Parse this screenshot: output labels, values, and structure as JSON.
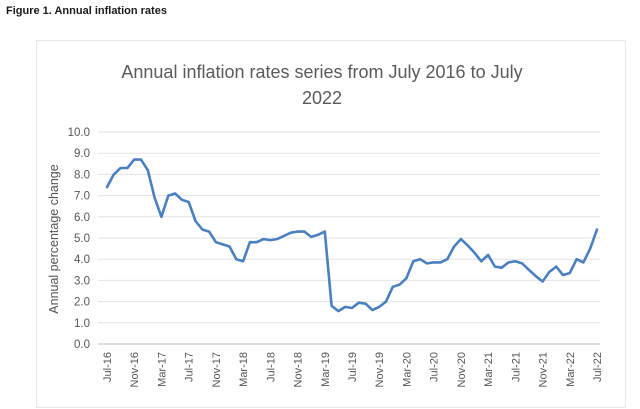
{
  "figure_caption": "Figure 1. Annual inflation rates",
  "chart_data": {
    "type": "line",
    "title": "Annual inflation rates series from July 2016 to July 2022",
    "xlabel": "",
    "ylabel": "Annual percentage change",
    "ylim": [
      0,
      10
    ],
    "yticks": [
      "0.0",
      "1.0",
      "2.0",
      "3.0",
      "4.0",
      "5.0",
      "6.0",
      "7.0",
      "8.0",
      "9.0",
      "10.0"
    ],
    "grid": true,
    "x_tick_labels": [
      "Jul-16",
      "Nov-16",
      "Mar-17",
      "Jul-17",
      "Nov-17",
      "Mar-18",
      "Jul-18",
      "Nov-18",
      "Mar-19",
      "Jul-19",
      "Nov-19",
      "Mar-20",
      "Jul-20",
      "Nov-20",
      "Mar-21",
      "Jul-21",
      "Nov-21",
      "Mar-22",
      "Jul-22"
    ],
    "series": [
      {
        "name": "",
        "color": "#4a7fc0",
        "x": [
          "2016-07",
          "2016-08",
          "2016-09",
          "2016-10",
          "2016-11",
          "2016-12",
          "2017-01",
          "2017-02",
          "2017-03",
          "2017-04",
          "2017-05",
          "2017-06",
          "2017-07",
          "2017-08",
          "2017-09",
          "2017-10",
          "2017-11",
          "2017-12",
          "2018-01",
          "2018-02",
          "2018-03",
          "2018-04",
          "2018-05",
          "2018-06",
          "2018-07",
          "2018-08",
          "2018-09",
          "2018-10",
          "2018-11",
          "2018-12",
          "2019-01",
          "2019-02",
          "2019-03",
          "2019-04",
          "2019-05",
          "2019-06",
          "2019-07",
          "2019-08",
          "2019-09",
          "2019-10",
          "2019-11",
          "2019-12",
          "2020-01",
          "2020-02",
          "2020-03",
          "2020-04",
          "2020-05",
          "2020-06",
          "2020-07",
          "2020-08",
          "2020-09",
          "2020-10",
          "2020-11",
          "2020-12",
          "2021-01",
          "2021-02",
          "2021-03",
          "2021-04",
          "2021-05",
          "2021-06",
          "2021-07",
          "2021-08",
          "2021-09",
          "2021-10",
          "2021-11",
          "2021-12",
          "2022-01",
          "2022-02",
          "2022-03",
          "2022-04",
          "2022-05",
          "2022-06",
          "2022-07"
        ],
        "values": [
          7.4,
          8.0,
          8.3,
          8.3,
          8.7,
          8.7,
          8.2,
          6.9,
          6.0,
          7.0,
          7.1,
          6.8,
          6.7,
          5.8,
          5.4,
          5.3,
          4.8,
          4.7,
          4.6,
          4.0,
          3.9,
          4.8,
          4.8,
          4.95,
          4.9,
          4.95,
          5.1,
          5.25,
          5.3,
          5.3,
          5.05,
          5.15,
          5.3,
          1.8,
          1.55,
          1.75,
          1.7,
          1.95,
          1.9,
          1.6,
          1.75,
          2.0,
          2.7,
          2.8,
          3.1,
          3.9,
          4.0,
          3.8,
          3.85,
          3.85,
          4.0,
          4.6,
          4.95,
          4.65,
          4.3,
          3.9,
          4.2,
          3.65,
          3.6,
          3.85,
          3.9,
          3.8,
          3.5,
          3.2,
          2.95,
          3.4,
          3.65,
          3.25,
          3.35,
          4.0,
          3.85,
          4.5,
          5.4
        ]
      }
    ]
  }
}
